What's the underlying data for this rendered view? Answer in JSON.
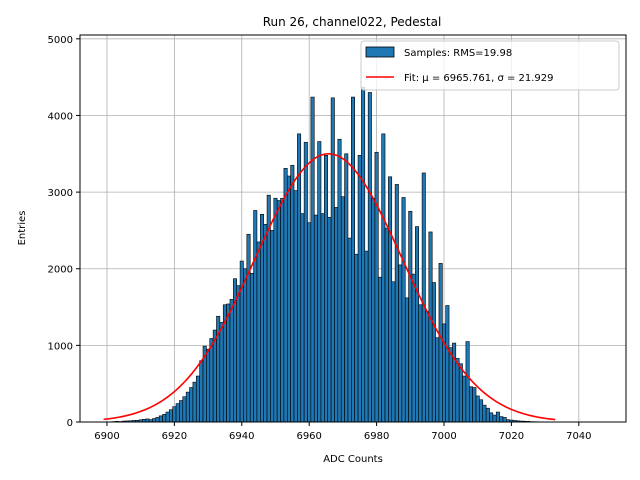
{
  "chart_data": {
    "type": "bar",
    "title": "Run 26, channel022, Pedestal",
    "xlabel": "ADC Counts",
    "ylabel": "Entries",
    "xlim": [
      6892,
      7054
    ],
    "ylim": [
      0,
      5050
    ],
    "xticks": [
      6900,
      6920,
      6940,
      6960,
      6980,
      7000,
      7020,
      7040
    ],
    "yticks": [
      0,
      1000,
      2000,
      3000,
      4000,
      5000
    ],
    "grid": true,
    "legend_position": "top-right",
    "colors": {
      "bar_fill": "#1f77b4",
      "bar_edge": "#000000",
      "fit_line": "#ff0000",
      "grid": "#b0b0b0"
    },
    "legend": [
      {
        "label": "Samples: RMS=19.98",
        "kind": "patch",
        "color": "#1f77b4"
      },
      {
        "label": "Fit: μ = 6965.761, σ = 21.929",
        "kind": "line",
        "color": "#ff0000"
      }
    ],
    "series": [
      {
        "name": "Samples: RMS=19.98",
        "kind": "histogram",
        "bin_width": 1,
        "x": [
          6902,
          6903,
          6904,
          6905,
          6906,
          6907,
          6908,
          6909,
          6910,
          6911,
          6912,
          6913,
          6914,
          6915,
          6916,
          6917,
          6918,
          6919,
          6920,
          6921,
          6922,
          6923,
          6924,
          6925,
          6926,
          6927,
          6928,
          6929,
          6930,
          6931,
          6932,
          6933,
          6934,
          6935,
          6936,
          6937,
          6938,
          6939,
          6940,
          6941,
          6942,
          6943,
          6944,
          6945,
          6946,
          6947,
          6948,
          6949,
          6950,
          6951,
          6952,
          6953,
          6954,
          6955,
          6956,
          6957,
          6958,
          6959,
          6960,
          6961,
          6962,
          6963,
          6964,
          6965,
          6966,
          6967,
          6968,
          6969,
          6970,
          6971,
          6972,
          6973,
          6974,
          6975,
          6976,
          6977,
          6978,
          6979,
          6980,
          6981,
          6982,
          6983,
          6984,
          6985,
          6986,
          6987,
          6988,
          6989,
          6990,
          6991,
          6992,
          6993,
          6994,
          6995,
          6996,
          6997,
          6998,
          6999,
          7000,
          7001,
          7002,
          7003,
          7004,
          7005,
          7006,
          7007,
          7008,
          7009,
          7010,
          7011,
          7012,
          7013,
          7014,
          7015,
          7016,
          7017,
          7018,
          7019,
          7020,
          7021,
          7022,
          7023,
          7024,
          7025,
          7026,
          7027,
          7028,
          7029
        ],
        "values": [
          5,
          8,
          6,
          12,
          14,
          16,
          20,
          22,
          28,
          35,
          40,
          30,
          45,
          60,
          80,
          100,
          130,
          160,
          200,
          240,
          280,
          330,
          390,
          450,
          520,
          600,
          800,
          990,
          950,
          1090,
          1200,
          1380,
          1300,
          1530,
          1540,
          1600,
          1870,
          1780,
          2100,
          2000,
          2450,
          1940,
          2760,
          2350,
          2710,
          2580,
          2960,
          2500,
          2920,
          2890,
          2920,
          3310,
          3210,
          3350,
          3020,
          3760,
          2720,
          3650,
          2600,
          4240,
          2700,
          3660,
          2720,
          3480,
          2670,
          4230,
          2800,
          3690,
          2940,
          3500,
          2400,
          4240,
          2190,
          3480,
          4370,
          2230,
          4300,
          2920,
          3520,
          1890,
          3760,
          2530,
          3200,
          1830,
          3100,
          2050,
          2930,
          1620,
          2750,
          1930,
          2550,
          1530,
          3250,
          1440,
          2480,
          1820,
          1100,
          2070,
          1280,
          1520,
          970,
          1030,
          830,
          760,
          600,
          1050,
          460,
          450,
          340,
          290,
          220,
          180,
          120,
          90,
          130,
          70,
          60,
          30,
          25,
          20,
          15,
          12,
          10,
          8,
          5,
          4,
          3,
          2
        ]
      },
      {
        "name": "Fit: μ = 6965.761, σ = 21.929",
        "kind": "gaussian",
        "mu": 6965.761,
        "sigma": 21.929,
        "amplitude": 3500,
        "x_range": [
          6899,
          7033
        ]
      }
    ]
  }
}
